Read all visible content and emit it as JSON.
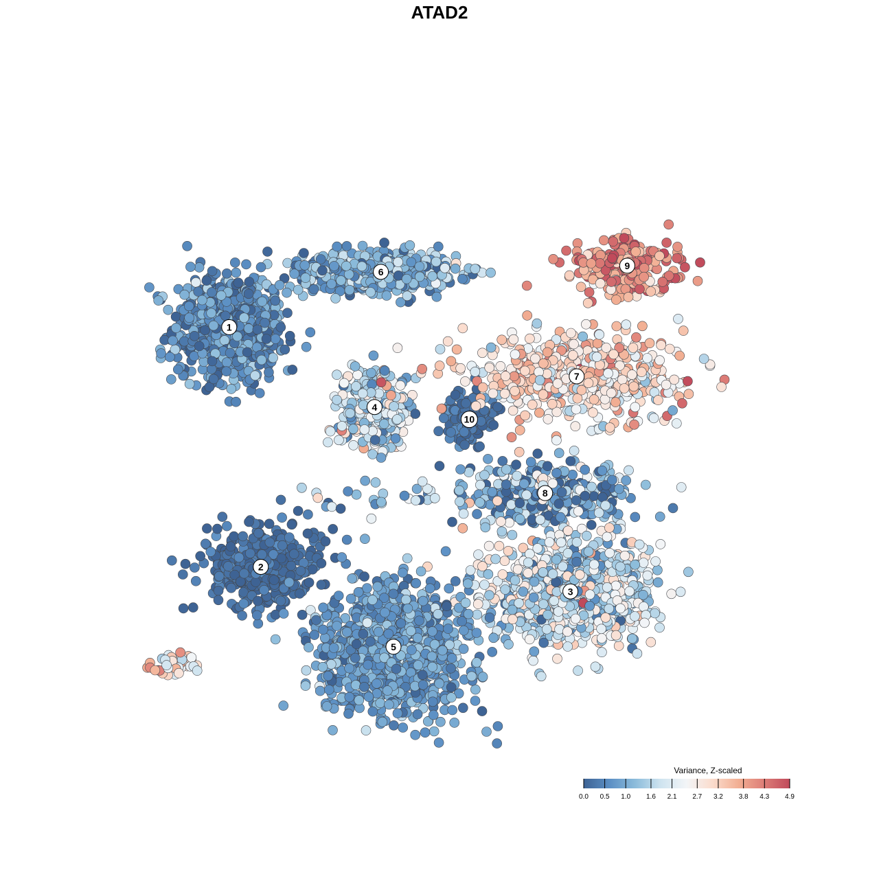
{
  "chart_data": {
    "type": "scatter",
    "title": "ATAD2",
    "xlabel": "",
    "ylabel": "",
    "grid": false,
    "xlim": [
      0,
      100
    ],
    "ylim": [
      0,
      100
    ],
    "legend": {
      "title": "Variance, Z-scaled",
      "placement": "bottom-right",
      "ticks": [
        "0.0",
        "0.5",
        "1.0",
        "1.6",
        "2.1",
        "2.7",
        "3.2",
        "3.8",
        "4.3",
        "4.9"
      ],
      "range": [
        0.0,
        4.9
      ]
    },
    "colorscale": [
      "#3e6394",
      "#5b8fc4",
      "#8cbcdb",
      "#cfe4f0",
      "#f3f5f7",
      "#fbdccd",
      "#f2af93",
      "#dd7d77",
      "#c04a5b"
    ],
    "clusters": [
      {
        "label": "1",
        "x": 14,
        "y": 68,
        "sx": 8,
        "sy": 8,
        "value": 0.6,
        "spread": 0.45,
        "n": 760
      },
      {
        "label": "6",
        "x": 38,
        "y": 77,
        "sx": 11,
        "sy": 3,
        "value": 1.0,
        "spread": 0.6,
        "n": 520
      },
      {
        "label": "4",
        "x": 37,
        "y": 55,
        "sx": 5,
        "sy": 6,
        "value": 1.7,
        "spread": 0.7,
        "n": 360
      },
      {
        "label": "10",
        "x": 52,
        "y": 53,
        "sx": 4,
        "sy": 4,
        "value": 0.2,
        "spread": 0.3,
        "n": 140
      },
      {
        "label": "7",
        "x": 69,
        "y": 60,
        "sx": 16,
        "sy": 6,
        "value": 2.9,
        "spread": 0.7,
        "n": 520
      },
      {
        "label": "9",
        "x": 77,
        "y": 78,
        "sx": 8,
        "sy": 4,
        "value": 4.0,
        "spread": 0.6,
        "n": 260
      },
      {
        "label": "8",
        "x": 64,
        "y": 41,
        "sx": 12,
        "sy": 5,
        "value": 1.0,
        "spread": 0.9,
        "n": 340
      },
      {
        "label": "2",
        "x": 19,
        "y": 29,
        "sx": 8,
        "sy": 6,
        "value": 0.15,
        "spread": 0.25,
        "n": 420
      },
      {
        "label": "3",
        "x": 68,
        "y": 25,
        "sx": 12,
        "sy": 8,
        "value": 1.9,
        "spread": 0.8,
        "n": 820
      },
      {
        "label": "5",
        "x": 40,
        "y": 16,
        "sx": 11,
        "sy": 10,
        "value": 0.8,
        "spread": 0.4,
        "n": 980
      }
    ],
    "outlier_groups": [
      {
        "x": 5,
        "y": 13,
        "sx": 4,
        "sy": 2,
        "value": 2.8,
        "spread": 0.9,
        "n": 40
      },
      {
        "x": 40,
        "y": 40,
        "sx": 10,
        "sy": 3,
        "value": 1.5,
        "spread": 0.9,
        "n": 30
      }
    ]
  }
}
